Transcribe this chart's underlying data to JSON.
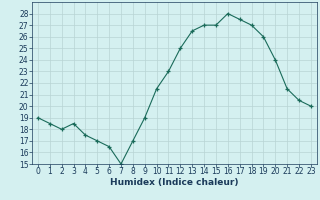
{
  "x": [
    0,
    1,
    2,
    3,
    4,
    5,
    6,
    7,
    8,
    9,
    10,
    11,
    12,
    13,
    14,
    15,
    16,
    17,
    18,
    19,
    20,
    21,
    22,
    23
  ],
  "y": [
    19,
    18.5,
    18,
    18.5,
    17.5,
    17,
    16.5,
    15,
    17,
    19,
    21.5,
    23,
    25,
    26.5,
    27,
    27,
    28,
    27.5,
    27,
    26,
    24,
    21.5,
    20.5,
    20
  ],
  "xlabel": "Humidex (Indice chaleur)",
  "xlim": [
    -0.5,
    23.5
  ],
  "ylim": [
    15,
    29
  ],
  "yticks": [
    15,
    16,
    17,
    18,
    19,
    20,
    21,
    22,
    23,
    24,
    25,
    26,
    27,
    28
  ],
  "xticks": [
    0,
    1,
    2,
    3,
    4,
    5,
    6,
    7,
    8,
    9,
    10,
    11,
    12,
    13,
    14,
    15,
    16,
    17,
    18,
    19,
    20,
    21,
    22,
    23
  ],
  "line_color": "#1a6b5a",
  "marker_color": "#1a6b5a",
  "bg_color": "#d4f0f0",
  "grid_color": "#b8d4d4",
  "label_color": "#1a3a5a",
  "tick_color": "#1a3a5a",
  "label_fontsize": 6.5,
  "tick_fontsize": 5.5
}
